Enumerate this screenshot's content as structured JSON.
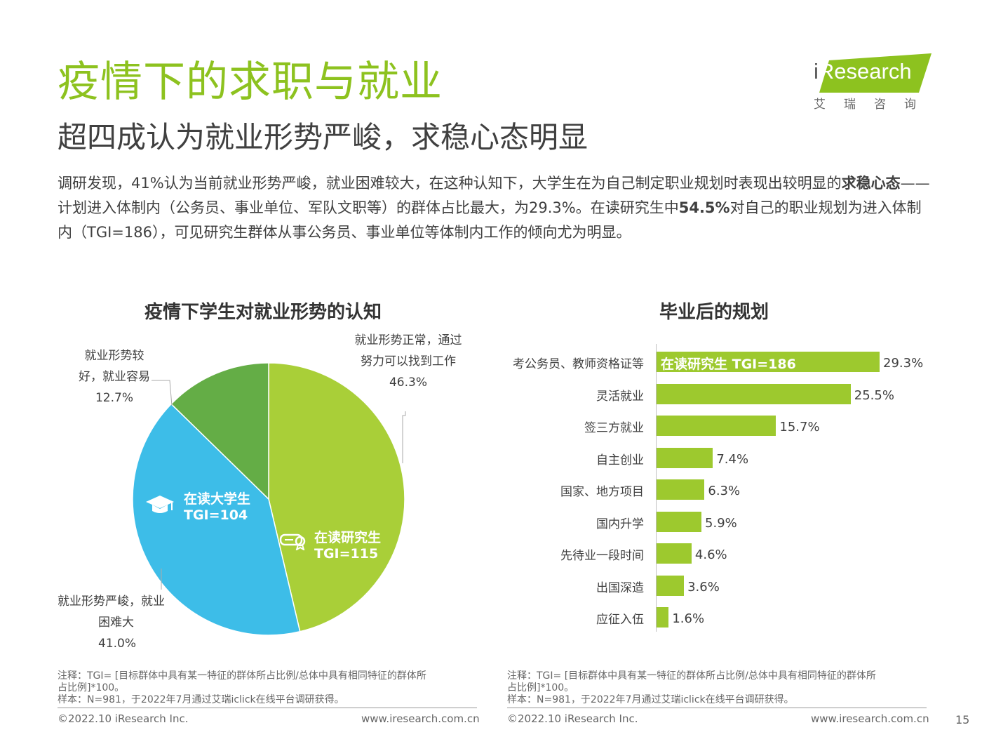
{
  "header": {
    "title": "疫情下的求职与就业",
    "subtitle": "超四成认为就业形势严峻，求稳心态明显",
    "intro": {
      "part1": "调研发现，41%认为当前就业形势严峻，就业困难较大，在这种认知下，大学生在为自己制定职业规划时表现出较明显的",
      "bold1": "求稳心态",
      "part2": "——计划进入体制内（公务员、事业单位、军队文职等）的群体占比最大，为29.3%。在读研究生中",
      "bold2": "54.5%",
      "part3": "对自己的职业规划为进入体制内（TGI=186），可见研究生群体从事公务员、事业单位等体制内工作的倾向尤为明显。"
    }
  },
  "logo": {
    "brand_i": "i",
    "brand_rest": "Research",
    "brand_cn": "艾瑞咨询"
  },
  "colors": {
    "brand_green": "#8dc21f",
    "pie_lime": "#a9cf38",
    "pie_blue": "#3dbde8",
    "pie_dark_green": "#64ad46",
    "bar_green": "#9dc92e"
  },
  "chart_data": [
    {
      "type": "pie",
      "title": "疫情下学生对就业形势的认知",
      "slices": [
        {
          "label": "就业形势正常，通过努力可以找到工作",
          "value": 46.3,
          "value_label": "46.3%",
          "color": "#a9cf38"
        },
        {
          "label": "就业形势严峻，就业困难大",
          "value": 41.0,
          "value_label": "41.0%",
          "color": "#3dbde8"
        },
        {
          "label": "就业形势较好，就业容易",
          "value": 12.7,
          "value_label": "12.7%",
          "color": "#64ad46"
        }
      ],
      "callouts": {
        "normal": {
          "line1": "就业形势正常，通过",
          "line2": "努力可以找到工作",
          "value": "46.3%"
        },
        "severe": {
          "line1": "就业形势严峻，就业",
          "line2": "困难大",
          "value": "41.0%"
        },
        "good": {
          "line1": "就业形势较",
          "line2": "好，就业容易",
          "value": "12.7%"
        }
      },
      "inner_labels": {
        "undergrad": {
          "name": "在读大学生",
          "tgi": "TGI=104",
          "icon": "graduation-cap-icon"
        },
        "grad": {
          "name": "在读研究生",
          "tgi": "TGI=115",
          "icon": "diploma-icon"
        }
      }
    },
    {
      "type": "bar",
      "orientation": "horizontal",
      "title": "毕业后的规划",
      "categories": [
        "考公务员、教师资格证等",
        "灵活就业",
        "签三方就业",
        "自主创业",
        "国家、地方项目",
        "国内升学",
        "先待业一段时间",
        "出国深造",
        "应征入伍"
      ],
      "values": [
        29.3,
        25.5,
        15.7,
        7.4,
        6.3,
        5.9,
        4.6,
        3.6,
        1.6
      ],
      "value_labels": [
        "29.3%",
        "25.5%",
        "15.7%",
        "7.4%",
        "6.3%",
        "5.9%",
        "4.6%",
        "3.6%",
        "1.6%"
      ],
      "bar_annotation": "在读研究生 TGI=186",
      "color": "#9dc92e"
    }
  ],
  "notes": {
    "left": {
      "line1": "注释：TGI= [目标群体中具有某一特征的群体所占比例/总体中具有相同特征的群体所",
      "line2": "占比例]*100。",
      "line3": "样本：N=981，于2022年7月通过艾瑞iclick在线平台调研获得。"
    },
    "right": {
      "line1": "注释：TGI= [目标群体中具有某一特征的群体所占比例/总体中具有相同特征的群体所",
      "line2": "占比例]*100。",
      "line3": "样本：N=981，于2022年7月通过艾瑞iclick在线平台调研获得。"
    }
  },
  "footer": {
    "copyright_left": "©2022.10 iResearch Inc.",
    "url_left": "www.iresearch.com.cn",
    "copyright_right": "©2022.10 iResearch Inc.",
    "url_right": "www.iresearch.com.cn",
    "page_number": "15"
  }
}
